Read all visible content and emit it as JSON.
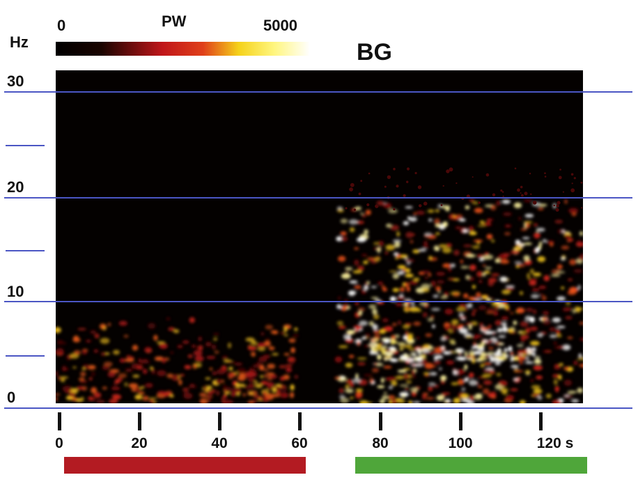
{
  "panel_title": "BG",
  "colorbar": {
    "min_label": "0",
    "title": "PW",
    "max_label": "5000",
    "unit_label": "Hz"
  },
  "colors": {
    "gridline": "#4b56c4",
    "red_bar": "#b31b22",
    "green_bar": "#4fa63a",
    "background": "#040100"
  },
  "chart_data": {
    "type": "heatmap",
    "title": "BG",
    "ylabel": "Hz",
    "xlabel": "s",
    "xlim": [
      0,
      131
    ],
    "ylim": [
      0,
      31
    ],
    "x_ticks": [
      "0",
      "20",
      "40",
      "60",
      "80",
      "100",
      "120 s"
    ],
    "y_ticks": [
      "0",
      "10",
      "20",
      "30"
    ],
    "colorbar_range": [
      0,
      5000
    ],
    "colorbar_label": "PW",
    "regions": [
      {
        "x_range": [
          0,
          60
        ],
        "y_range": [
          0,
          8
        ],
        "level": "moderate"
      },
      {
        "x_range": [
          70,
          131
        ],
        "y_range": [
          0,
          19
        ],
        "level": "high"
      },
      {
        "x_range": [
          78,
          120
        ],
        "y_range": [
          4,
          6
        ],
        "level": "very high"
      }
    ],
    "condition_bars": [
      {
        "color": "red",
        "x_range": [
          0,
          61
        ]
      },
      {
        "color": "green",
        "x_range": [
          73,
          131
        ]
      }
    ]
  }
}
